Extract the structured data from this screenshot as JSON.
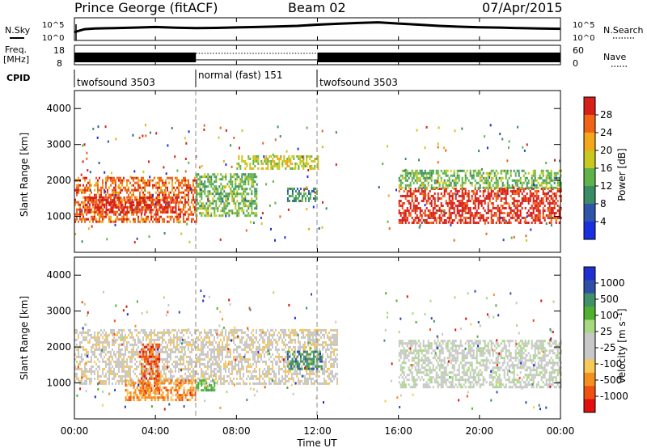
{
  "header": {
    "station": "Prince George (fitACF)",
    "beam": "Beam 02",
    "date": "07/Apr/2015"
  },
  "labels": {
    "nsky": "N.Sky",
    "nsearch": "N.Search",
    "freq_line1": "Freq.",
    "freq_line2": "[MHz]",
    "nave": "Nave",
    "cpid": "CPID"
  },
  "cpid_segments": [
    {
      "label": "twofsound 3503",
      "start": 0,
      "end": 6
    },
    {
      "label": "normal (fast) 151",
      "start": 6,
      "end": 12
    },
    {
      "label": "twofsound 3503",
      "start": 12,
      "end": 24
    }
  ],
  "colors": {
    "power": [
      "#1a2fe0",
      "#2f55a8",
      "#3a8c64",
      "#5fb34a",
      "#c8c81e",
      "#f2a818",
      "#f06418",
      "#d8201a"
    ],
    "velocity": [
      "#e01010",
      "#f05010",
      "#f39020",
      "#f8c858",
      "#c8c8c8",
      "#c8c8c8",
      "#a8d880",
      "#50b030",
      "#40906a",
      "#3050a8",
      "#2030d0"
    ]
  },
  "chart_data": [
    {
      "type": "line",
      "name": "sky-noise",
      "ylabel_ticks": [
        "10^5",
        "10^0"
      ],
      "xlim": [
        0,
        24
      ],
      "x": [
        0,
        0.5,
        1,
        2,
        3,
        4,
        5,
        6,
        7,
        8,
        9,
        10,
        11,
        12,
        13,
        14,
        15,
        16,
        17,
        18,
        19,
        20,
        21,
        22,
        23,
        24
      ],
      "y": [
        0.35,
        0.55,
        0.6,
        0.62,
        0.66,
        0.7,
        0.65,
        0.62,
        0.64,
        0.67,
        0.7,
        0.74,
        0.78,
        0.86,
        0.92,
        0.98,
        1.02,
        0.94,
        0.86,
        0.78,
        0.72,
        0.68,
        0.66,
        0.62,
        0.6,
        0.58
      ]
    },
    {
      "type": "line",
      "name": "frequency-nave",
      "ylabel_ticks_left": [
        "18",
        "8"
      ],
      "ylabel_ticks_right": [
        "60",
        "0"
      ],
      "xlim": [
        0,
        24
      ],
      "freq_mhz": 12,
      "nave_dotted_segment": [
        6,
        12
      ]
    },
    {
      "type": "heatmap",
      "name": "power",
      "title": "",
      "ylabel": "Slant Range [km]",
      "xlabel": "",
      "xlim": [
        0,
        24
      ],
      "ylim": [
        0,
        4500
      ],
      "yticks": [
        "1000",
        "2000",
        "3000",
        "4000"
      ],
      "colorbar_label": "Power [dB]",
      "colorbar_ticks": [
        "4",
        "8",
        "12",
        "16",
        "20",
        "24",
        "28"
      ],
      "features": [
        {
          "from": 0,
          "to": 6,
          "range": [
            850,
            2100
          ],
          "level": 6
        },
        {
          "from": 0.5,
          "to": 5,
          "range": [
            1100,
            1550
          ],
          "level": 7
        },
        {
          "from": 6,
          "to": 9,
          "range": [
            1000,
            2200
          ],
          "level": 3
        },
        {
          "from": 8,
          "to": 12,
          "range": [
            2300,
            2700
          ],
          "level": 4
        },
        {
          "from": 10.5,
          "to": 12,
          "range": [
            1400,
            1800
          ],
          "level": 2
        },
        {
          "from": 16,
          "to": 24,
          "range": [
            850,
            1800
          ],
          "level": 7
        },
        {
          "from": 16,
          "to": 24,
          "range": [
            1800,
            2300
          ],
          "level": 3
        }
      ]
    },
    {
      "type": "heatmap",
      "name": "velocity",
      "title": "",
      "ylabel": "Slant Range [km]",
      "xlabel": "Time UT",
      "xlim": [
        0,
        24
      ],
      "ylim": [
        0,
        4500
      ],
      "yticks": [
        "1000",
        "2000",
        "3000",
        "4000"
      ],
      "xticks": [
        "00:00",
        "04:00",
        "08:00",
        "12:00",
        "16:00",
        "20:00",
        "00:00"
      ],
      "colorbar_label": "Velocity [m s⁻¹]",
      "colorbar_ticks": [
        "1000",
        "500",
        "100",
        "25",
        "-25",
        "-100",
        "-500",
        "-1000"
      ],
      "features": [
        {
          "from": 0,
          "to": 13,
          "range": [
            1000,
            2500
          ],
          "level": 4
        },
        {
          "from": 3.2,
          "to": 4.2,
          "range": [
            700,
            2100
          ],
          "level": 1
        },
        {
          "from": 2.5,
          "to": 6,
          "range": [
            500,
            1100
          ],
          "level": 2
        },
        {
          "from": 6,
          "to": 7,
          "range": [
            800,
            1100
          ],
          "level": 7
        },
        {
          "from": 10.5,
          "to": 12.2,
          "range": [
            1400,
            1900
          ],
          "level": 8
        },
        {
          "from": 16,
          "to": 24,
          "range": [
            900,
            2200
          ],
          "level": 5
        }
      ]
    }
  ]
}
